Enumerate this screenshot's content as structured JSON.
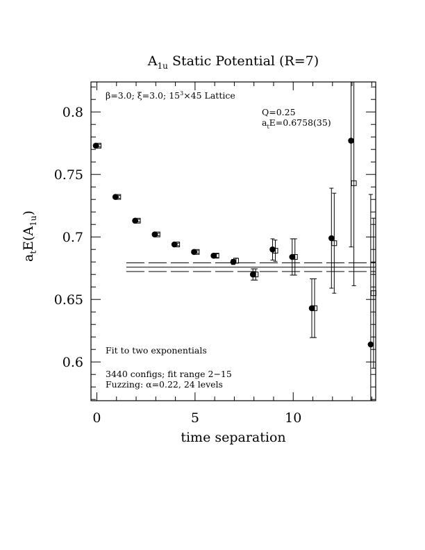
{
  "chart_data": {
    "type": "scatter",
    "title_main": "A",
    "title_sub": "1u",
    "title_rest": " Static Potential (R=7)",
    "xlabel": "time separation",
    "ylabel_main": "a",
    "ylabel_sub1": "t",
    "ylabel_mid": "E(A",
    "ylabel_sub2": "1u",
    "ylabel_end": ")",
    "xlim": [
      -0.3,
      14.2
    ],
    "ylim": [
      0.569,
      0.824
    ],
    "x_ticks": [
      0,
      5,
      10
    ],
    "x_tick_labels": [
      "0",
      "5",
      "10"
    ],
    "y_ticks": [
      0.6,
      0.65,
      0.7,
      0.75,
      0.8
    ],
    "y_tick_labels": [
      "0.6",
      "0.65",
      "0.7",
      "0.75",
      "0.8"
    ],
    "annotations": {
      "lattice_beta": "β=3.0; ",
      "lattice_xi": "ξ=3.0; 15",
      "lattice_exp": "3",
      "lattice_rest": "×45 Lattice",
      "q_value": "Q=0.25",
      "energy_pre": "a",
      "energy_sub": "t",
      "energy_rest": "E=0.6758(35)",
      "fit_label": "Fit to two exponentials",
      "configs": "3440 configs; fit range 2−15",
      "fuzzing": "Fuzzing: α=0.22, 24 levels"
    },
    "fit": {
      "value": 0.6758,
      "error": 0.0035,
      "x_from": 1.5,
      "x_to": 14.2
    },
    "series": [
      {
        "marker": "filled-circle",
        "points": [
          {
            "x": 0,
            "y": 0.773,
            "err": 0.001
          },
          {
            "x": 1,
            "y": 0.732,
            "err": 0.001
          },
          {
            "x": 2,
            "y": 0.713,
            "err": 0.001
          },
          {
            "x": 3,
            "y": 0.702,
            "err": 0.001
          },
          {
            "x": 4,
            "y": 0.694,
            "err": 0.001
          },
          {
            "x": 5,
            "y": 0.688,
            "err": 0.001
          },
          {
            "x": 6,
            "y": 0.685,
            "err": 0.0015
          },
          {
            "x": 7,
            "y": 0.68,
            "err": 0.002
          },
          {
            "x": 8,
            "y": 0.67,
            "err": 0.0045
          },
          {
            "x": 9,
            "y": 0.69,
            "err": 0.0085
          },
          {
            "x": 10,
            "y": 0.684,
            "err": 0.0145
          },
          {
            "x": 11,
            "y": 0.643,
            "err": 0.0235
          },
          {
            "x": 12,
            "y": 0.699,
            "err": 0.04
          },
          {
            "x": 13,
            "y": 0.777,
            "err": 0.085
          },
          {
            "x": 14,
            "y": 0.614,
            "err": 0.12
          }
        ]
      },
      {
        "marker": "open-square",
        "points": [
          {
            "x": 0,
            "y": 0.773,
            "err": 0.001
          },
          {
            "x": 1,
            "y": 0.732,
            "err": 0.001
          },
          {
            "x": 2,
            "y": 0.713,
            "err": 0.001
          },
          {
            "x": 3,
            "y": 0.702,
            "err": 0.001
          },
          {
            "x": 4,
            "y": 0.694,
            "err": 0.001
          },
          {
            "x": 5,
            "y": 0.688,
            "err": 0.001
          },
          {
            "x": 6,
            "y": 0.685,
            "err": 0.0015
          },
          {
            "x": 7,
            "y": 0.681,
            "err": 0.002
          },
          {
            "x": 8,
            "y": 0.67,
            "err": 0.0045
          },
          {
            "x": 9,
            "y": 0.689,
            "err": 0.0085
          },
          {
            "x": 10,
            "y": 0.684,
            "err": 0.0145
          },
          {
            "x": 11,
            "y": 0.643,
            "err": 0.0235
          },
          {
            "x": 12,
            "y": 0.695,
            "err": 0.04
          },
          {
            "x": 13,
            "y": 0.743,
            "err": 0.082
          },
          {
            "x": 14,
            "y": 0.655,
            "err": 0.06
          }
        ]
      }
    ]
  }
}
